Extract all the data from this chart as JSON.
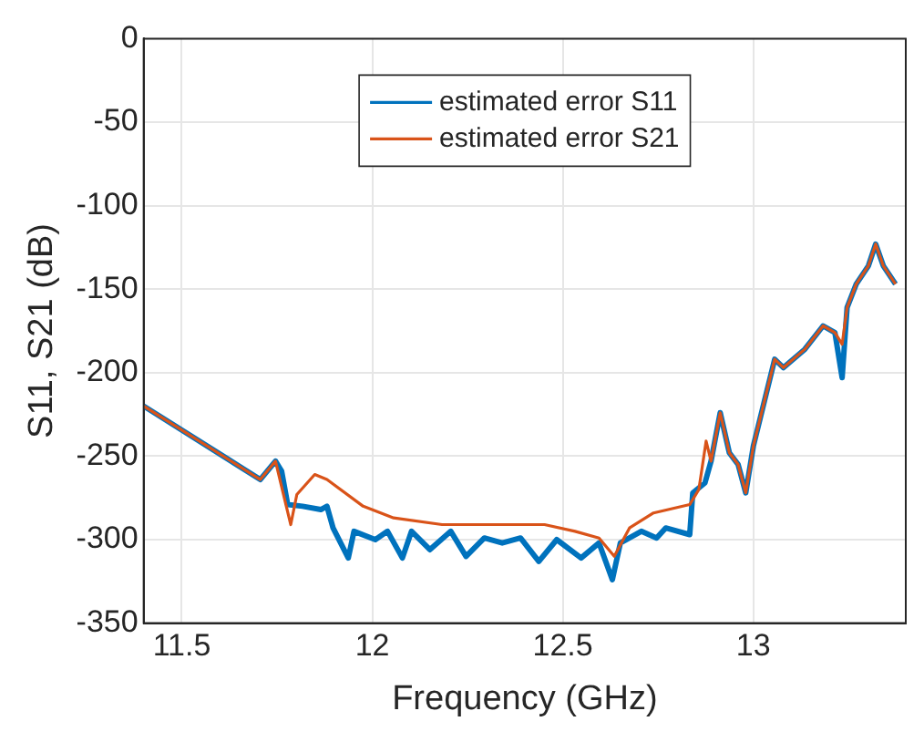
{
  "chart_data": {
    "type": "line",
    "xlabel": "Frequency (GHz)",
    "ylabel": "S11, S21 (dB)",
    "xlim": [
      11.4,
      13.4
    ],
    "xticks": [
      11.5,
      12,
      12.5,
      13
    ],
    "ylim": [
      -350,
      0
    ],
    "yticks": [
      0,
      -50,
      -100,
      -150,
      -200,
      -250,
      -300,
      -350
    ],
    "grid": true,
    "legend": "top",
    "marker": "none",
    "line_style": "solid",
    "series": [
      {
        "name": "estimated error S11",
        "color": "#0072bd",
        "x": [
          11.4,
          11.706,
          11.746,
          11.762,
          11.778,
          11.817,
          11.865,
          11.881,
          11.897,
          11.937,
          11.952,
          12.008,
          12.04,
          12.079,
          12.103,
          12.151,
          12.206,
          12.246,
          12.294,
          12.341,
          12.389,
          12.437,
          12.484,
          12.548,
          12.595,
          12.63,
          12.651,
          12.706,
          12.746,
          12.77,
          12.833,
          12.841,
          12.873,
          12.889,
          12.913,
          12.937,
          12.96,
          12.98,
          13.0,
          13.056,
          13.079,
          13.135,
          13.183,
          13.214,
          13.233,
          13.246,
          13.27,
          13.302,
          13.321,
          13.341,
          13.373
        ],
        "values": [
          -220,
          -264,
          -253,
          -259,
          -279,
          -280,
          -282,
          -280,
          -293,
          -311,
          -295,
          -300,
          -295,
          -311,
          -295,
          -306,
          -295,
          -310,
          -299,
          -302,
          -299,
          -313,
          -300,
          -311,
          -302,
          -324,
          -302,
          -295,
          -299,
          -293,
          -297,
          -272,
          -266,
          -253,
          -224,
          -248,
          -255,
          -272,
          -244,
          -192,
          -197,
          -186,
          -172,
          -176,
          -203,
          -161,
          -147,
          -136,
          -123,
          -136,
          -147
        ]
      },
      {
        "name": "estimated error S21",
        "color": "#d95319",
        "x": [
          11.4,
          11.706,
          11.746,
          11.767,
          11.786,
          11.802,
          11.849,
          11.881,
          11.976,
          12.056,
          12.183,
          12.452,
          12.532,
          12.595,
          12.635,
          12.675,
          12.738,
          12.833,
          12.857,
          12.876,
          12.889,
          12.913,
          12.937,
          12.96,
          12.98,
          13.0,
          13.056,
          13.079,
          13.135,
          13.183,
          13.214,
          13.233,
          13.246,
          13.27,
          13.302,
          13.321,
          13.341,
          13.373
        ],
        "values": [
          -220,
          -264,
          -253,
          -273,
          -291,
          -273,
          -261,
          -264,
          -280,
          -287,
          -291,
          -291,
          -295,
          -299,
          -310,
          -293,
          -284,
          -279,
          -270,
          -241,
          -253,
          -224,
          -248,
          -255,
          -272,
          -244,
          -192,
          -197,
          -186,
          -172,
          -176,
          -183,
          -161,
          -147,
          -136,
          -123,
          -136,
          -147
        ]
      }
    ]
  }
}
